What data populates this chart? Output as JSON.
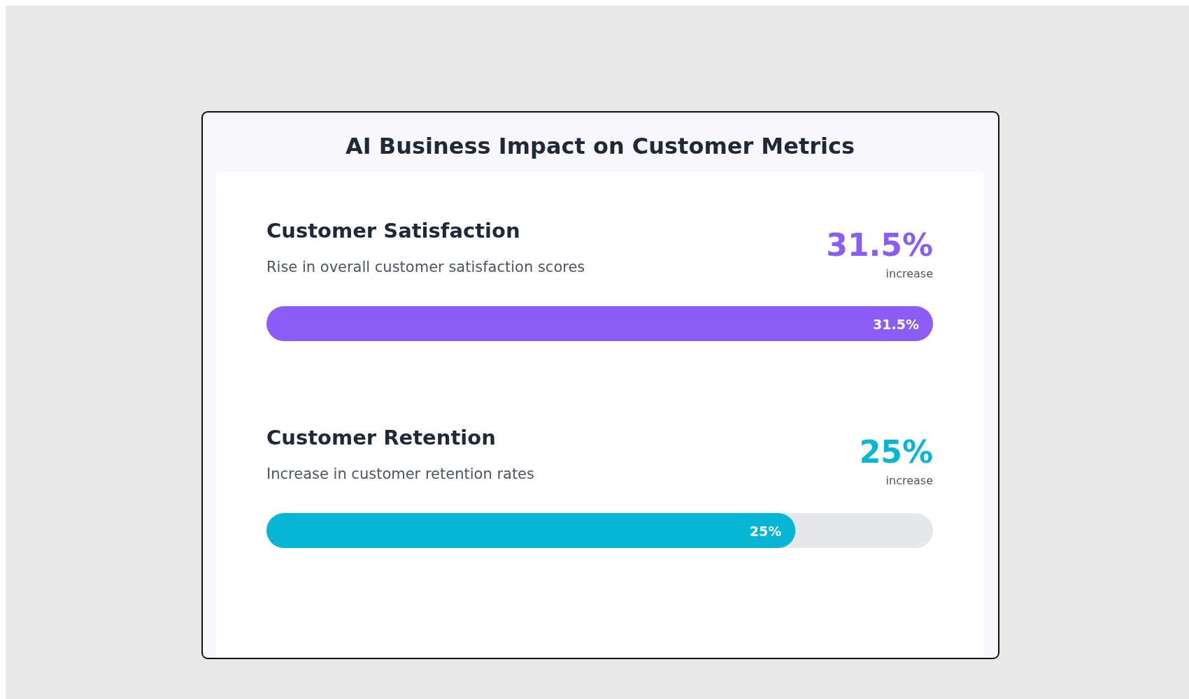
{
  "chart_data": {
    "type": "bar",
    "orientation": "horizontal",
    "title": "AI Business Impact on Customer Metrics",
    "categories": [
      "Customer Satisfaction",
      "Customer Retention"
    ],
    "values": [
      31.5,
      25
    ],
    "colors": [
      "#8b5cf6",
      "#06b6d4"
    ],
    "value_labels": [
      "31.5%",
      "25%"
    ],
    "annotations": [
      "Rise in overall customer satisfaction scores",
      "Increase in customer retention rates",
      "increase",
      "increase"
    ]
  }
}
